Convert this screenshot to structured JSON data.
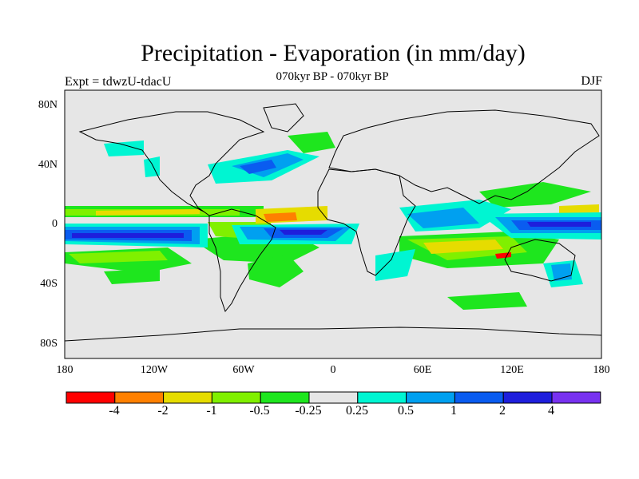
{
  "figure": {
    "title": "Precipitation - Evaporation (in mm/day)",
    "subtitle": "070kyr BP - 070kyr BP",
    "experiment": "Expt = tdwzU-tdacU",
    "season": "DJF"
  },
  "map": {
    "projection": "cylindrical-equidistant",
    "lon_range": [
      -180,
      180
    ],
    "lat_range": [
      -90,
      90
    ],
    "background_color": "#e6e6e6",
    "lat_ticks": [
      "80N",
      "40N",
      "0",
      "40S",
      "80S"
    ],
    "lon_ticks": [
      "180",
      "120W",
      "60W",
      "0",
      "60E",
      "120E",
      "180"
    ]
  },
  "colorbar": {
    "colors": [
      "#ff0000",
      "#ff8000",
      "#e6dc00",
      "#80f000",
      "#1ee61e",
      "#e6e6e6",
      "#00f5d2",
      "#00a0f0",
      "#0a5cf0",
      "#1e1edc",
      "#7832f0"
    ],
    "labels": [
      "-4",
      "-2",
      "-1",
      "-0.5",
      "-0.25",
      "0.25",
      "0.5",
      "1",
      "2",
      "4"
    ]
  },
  "icons": {
    "coastline": "coastline-icon"
  }
}
